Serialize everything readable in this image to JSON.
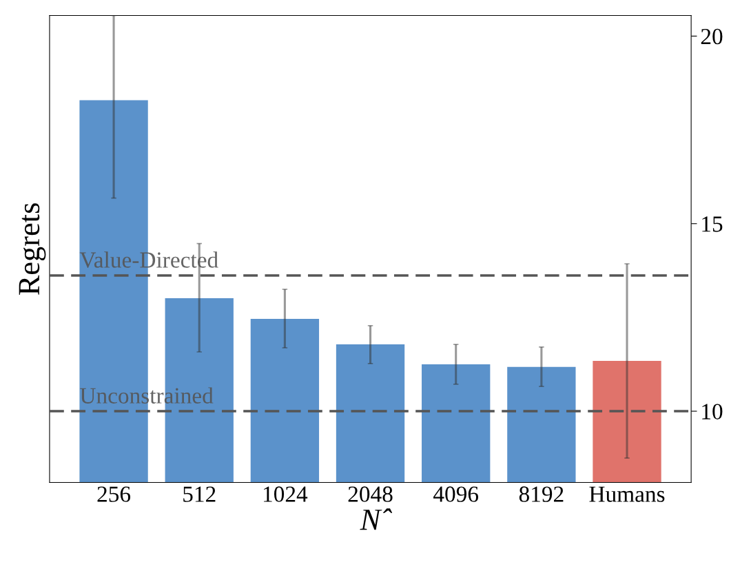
{
  "chart_data": {
    "type": "bar",
    "xlabel": "N̂",
    "ylabel": "Regrets",
    "categories": [
      "256",
      "512",
      "1024",
      "2048",
      "4096",
      "8192",
      "Humans"
    ],
    "values": [
      18.29,
      13.01,
      12.46,
      11.78,
      11.25,
      11.18,
      11.34
    ],
    "colors": [
      "#5b92cb",
      "#5b92cb",
      "#5b92cb",
      "#5b92cb",
      "#5b92cb",
      "#5b92cb",
      "#e0736b"
    ],
    "errors": [
      [
        15.68,
        20.55
      ],
      [
        11.58,
        14.47
      ],
      [
        11.69,
        13.25
      ],
      [
        11.27,
        12.28
      ],
      [
        10.72,
        11.78
      ],
      [
        10.66,
        11.71
      ],
      [
        8.75,
        13.93
      ]
    ],
    "ylim": [
      8.1,
      20.55
    ],
    "yticks": [
      10,
      15,
      20
    ],
    "ref_lines": [
      {
        "axis": "y",
        "value": 13.62,
        "label": "Value-Directed",
        "color": "#555555",
        "line_style": "dashed"
      },
      {
        "axis": "y",
        "value": 10.0,
        "label": "Unconstrained",
        "color": "#555555",
        "line_style": "dashed"
      }
    ],
    "grid": false
  }
}
